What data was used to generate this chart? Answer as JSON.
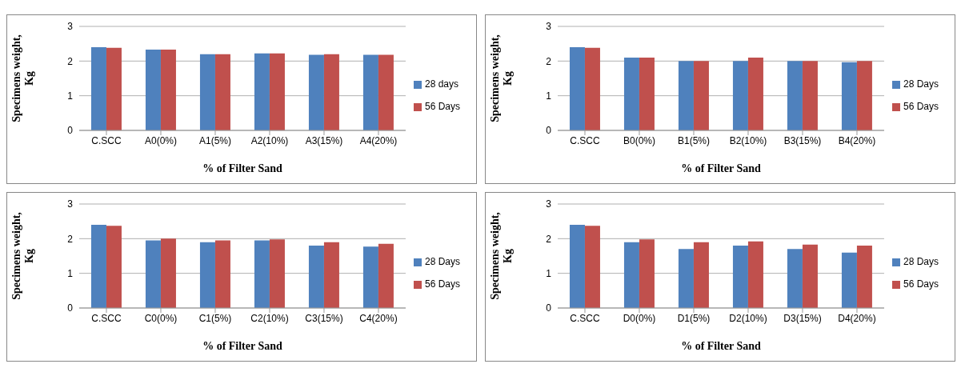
{
  "chart_data": [
    {
      "type": "bar",
      "categories": [
        "C.SCC",
        "A0(0%)",
        "A1(5%)",
        "A2(10%)",
        "A3(15%)",
        "A4(20%)"
      ],
      "xlabel": "% of Filter Sand",
      "ylabel": "Specimens weight, Kg",
      "ylim": [
        0,
        3
      ],
      "yticks": [
        0,
        1,
        2,
        3
      ],
      "grid": "y",
      "legend": "right",
      "series": [
        {
          "name": "28 days",
          "color": "#4f81bd",
          "values": [
            2.4,
            2.33,
            2.2,
            2.22,
            2.18,
            2.18
          ]
        },
        {
          "name": "56 Days",
          "color": "#c0504d",
          "values": [
            2.38,
            2.33,
            2.2,
            2.22,
            2.2,
            2.18
          ]
        }
      ]
    },
    {
      "type": "bar",
      "categories": [
        "C.SCC",
        "B0(0%)",
        "B1(5%)",
        "B2(10%)",
        "B3(15%)",
        "B4(20%)"
      ],
      "xlabel": "% of Filter Sand",
      "ylabel": "Specimens weight, Kg",
      "ylim": [
        0,
        3
      ],
      "yticks": [
        0,
        1,
        2,
        3
      ],
      "grid": "y",
      "legend": "right",
      "series": [
        {
          "name": "28 Days",
          "color": "#4f81bd",
          "values": [
            2.4,
            2.1,
            2.0,
            2.0,
            2.0,
            1.97
          ]
        },
        {
          "name": "56 Days",
          "color": "#c0504d",
          "values": [
            2.38,
            2.1,
            2.0,
            2.1,
            2.0,
            2.0
          ]
        }
      ]
    },
    {
      "type": "bar",
      "categories": [
        "C.SCC",
        "C0(0%)",
        "C1(5%)",
        "C2(10%)",
        "C3(15%)",
        "C4(20%)"
      ],
      "xlabel": "% of Filter Sand",
      "ylabel": "Specimens weight, Kg",
      "ylim": [
        0,
        3
      ],
      "yticks": [
        0,
        1,
        2,
        3
      ],
      "grid": "y",
      "legend": "right",
      "series": [
        {
          "name": "28 Days",
          "color": "#4f81bd",
          "values": [
            2.4,
            1.95,
            1.9,
            1.95,
            1.8,
            1.77
          ]
        },
        {
          "name": "56 Days",
          "color": "#c0504d",
          "values": [
            2.37,
            2.0,
            1.95,
            1.98,
            1.9,
            1.85
          ]
        }
      ]
    },
    {
      "type": "bar",
      "categories": [
        "C.SCC",
        "D0(0%)",
        "D1(5%)",
        "D2(10%)",
        "D3(15%)",
        "D4(20%)"
      ],
      "xlabel": "% of Filter Sand",
      "ylabel": "Specimens weight, Kg",
      "ylim": [
        0,
        3
      ],
      "yticks": [
        0,
        1,
        2,
        3
      ],
      "grid": "y",
      "legend": "right",
      "series": [
        {
          "name": "28 Days",
          "color": "#4f81bd",
          "values": [
            2.4,
            1.9,
            1.7,
            1.8,
            1.7,
            1.6
          ]
        },
        {
          "name": "56 Days",
          "color": "#c0504d",
          "values": [
            2.37,
            1.98,
            1.9,
            1.92,
            1.83,
            1.8
          ]
        }
      ]
    }
  ]
}
